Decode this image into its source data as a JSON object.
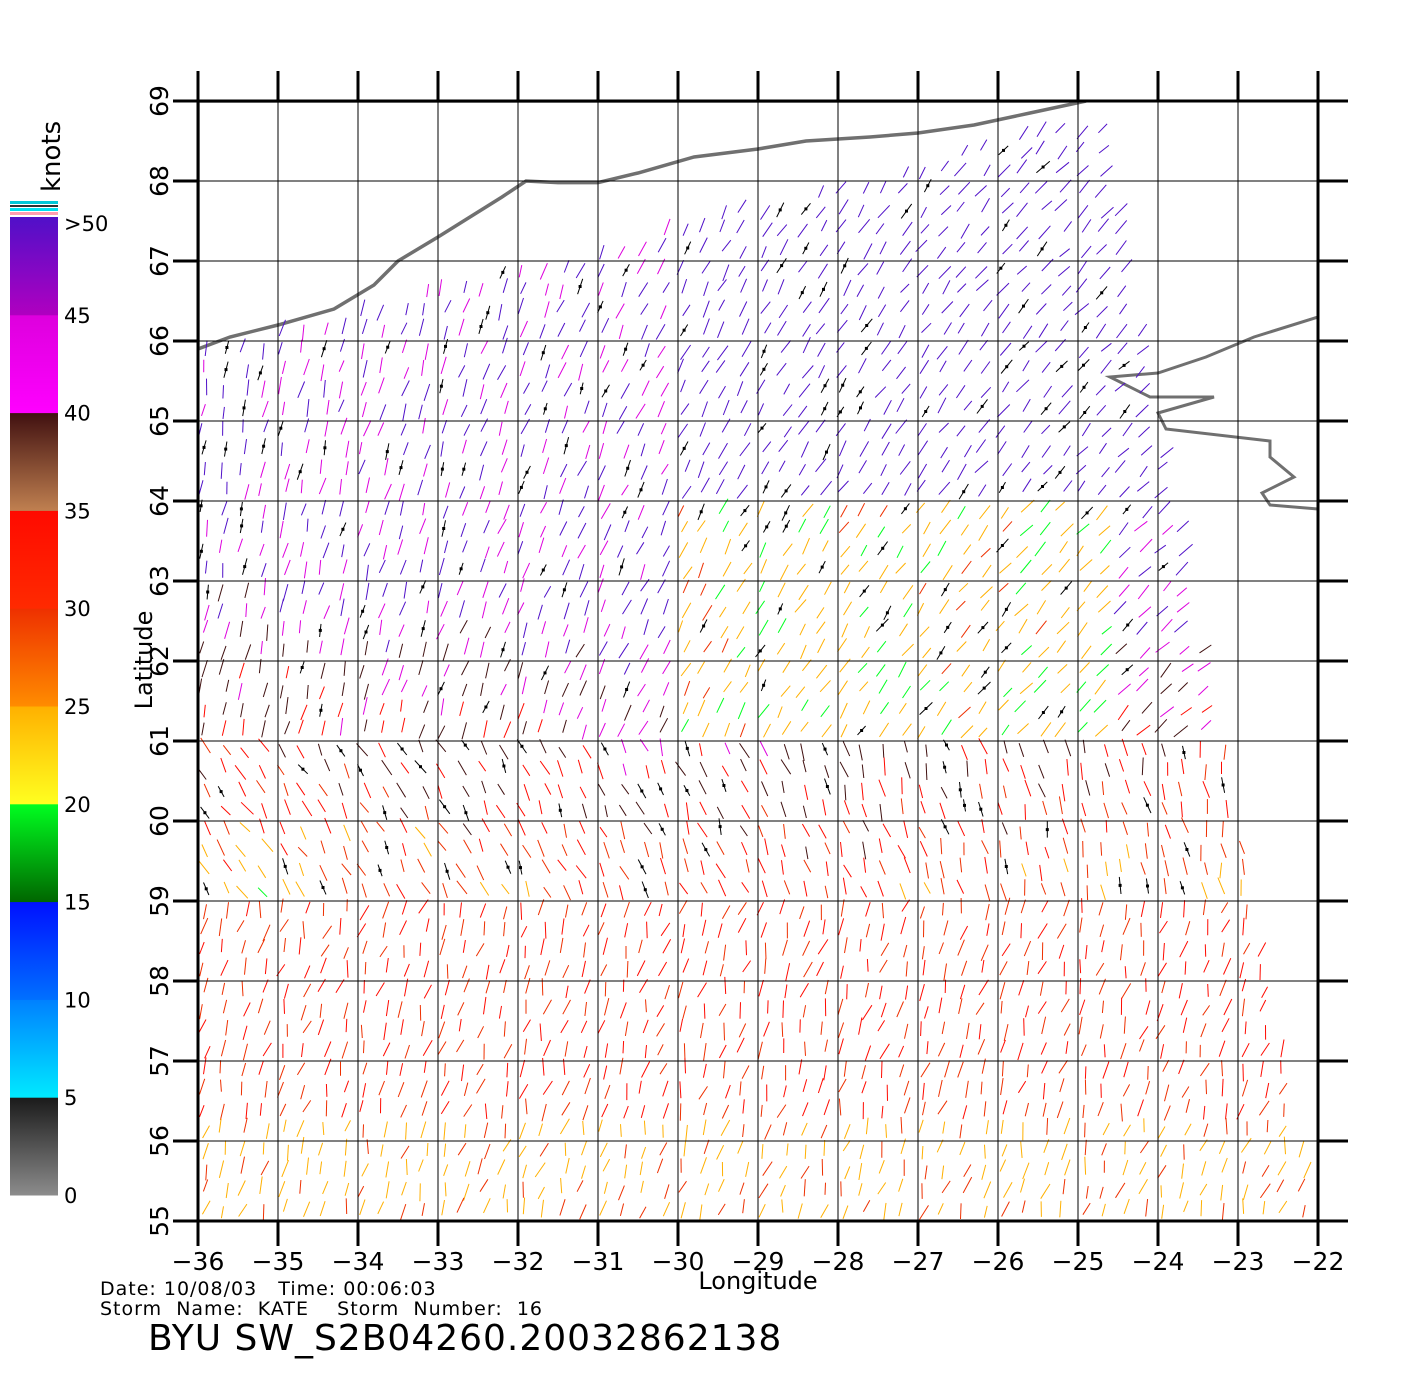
{
  "map": {
    "xlabel": "Longitude",
    "ylabel": "Latitude",
    "lon_range": [
      -36,
      -22
    ],
    "lat_range": [
      55,
      69
    ],
    "lon_ticks": [
      "−36",
      "−35",
      "−34",
      "−33",
      "−32",
      "−31",
      "−30",
      "−29",
      "−28",
      "−27",
      "−26",
      "−25",
      "−24",
      "−23",
      "−22"
    ],
    "lat_ticks": [
      "55",
      "56",
      "57",
      "58",
      "59",
      "60",
      "61",
      "62",
      "63",
      "64",
      "65",
      "66",
      "67",
      "68",
      "69"
    ],
    "grid": true,
    "land_color": "#707070",
    "swath_corners": [
      {
        "lon": -36.0,
        "lat": 65.9
      },
      {
        "lon": -24.7,
        "lat": 68.9
      },
      {
        "lon": -22.0,
        "lat": 55.0
      },
      {
        "lon": -36.0,
        "lat": 55.0
      }
    ]
  },
  "colorbar": {
    "unit_label": "knots",
    "top_label": ">50",
    "tick_labels": [
      "0",
      "5",
      "10",
      "15",
      "20",
      "25",
      "30",
      "35",
      "40",
      "45",
      ">50"
    ],
    "segments": [
      {
        "from": 0,
        "to": 5,
        "colors": [
          "#8c8c8c",
          "#1a1a1a"
        ]
      },
      {
        "from": 5,
        "to": 10,
        "colors": [
          "#00eaff",
          "#0080ff"
        ]
      },
      {
        "from": 10,
        "to": 15,
        "colors": [
          "#0070ff",
          "#0010ff"
        ]
      },
      {
        "from": 15,
        "to": 20,
        "colors": [
          "#006600",
          "#00ff20"
        ]
      },
      {
        "from": 20,
        "to": 25,
        "colors": [
          "#ffff20",
          "#ffb000"
        ]
      },
      {
        "from": 25,
        "to": 30,
        "colors": [
          "#ff8c00",
          "#ee3000"
        ]
      },
      {
        "from": 30,
        "to": 35,
        "colors": [
          "#ff2a00",
          "#ff0a00"
        ]
      },
      {
        "from": 35,
        "to": 40,
        "colors": [
          "#c08050",
          "#401010"
        ]
      },
      {
        "from": 40,
        "to": 45,
        "colors": [
          "#ff00ff",
          "#dd00dd"
        ]
      },
      {
        "from": 45,
        "to": 50,
        "colors": [
          "#b000c0",
          "#5010c8"
        ]
      }
    ]
  },
  "info": {
    "date_line": "Date: 10/08/03   Time: 00:06:03",
    "storm_line": "Storm  Name:  KATE    Storm  Number:  16",
    "product": "BYU  SW_S2B04260.20032862138"
  }
}
